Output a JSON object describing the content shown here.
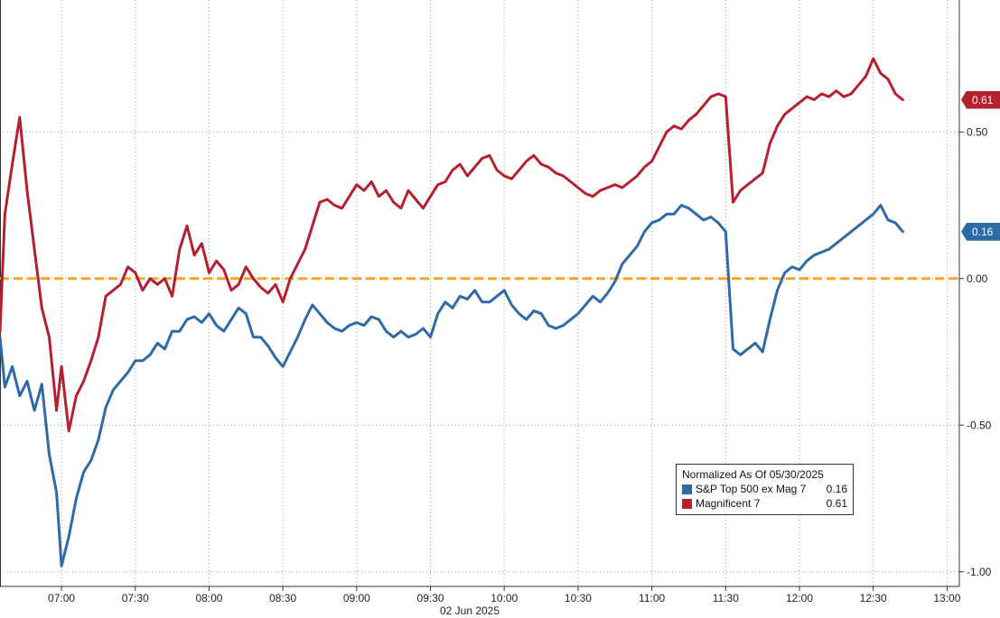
{
  "chart_data": {
    "type": "line",
    "date_label": "02 Jun 2025",
    "x_ticks": [
      "07:00",
      "07:30",
      "08:00",
      "08:30",
      "09:00",
      "09:30",
      "10:00",
      "10:30",
      "11:00",
      "11:30",
      "12:00",
      "12:30",
      "13:00"
    ],
    "y_ticks": [
      "0.50",
      "0.00",
      "-0.50",
      "-1.00"
    ],
    "y_tick_values": [
      0.5,
      0.0,
      -0.5,
      -1.0
    ],
    "ylim": [
      -1.05,
      0.95
    ],
    "xlim": [
      "06:35",
      "13:05"
    ],
    "grid": true,
    "y_axis_side": "right",
    "legend": {
      "title": "Normalized As Of 05/30/2025",
      "placement": "bottom-right",
      "entries": [
        {
          "name": "S&P Top 500 ex Mag 7",
          "value": "0.16",
          "color": "#2f6aa8"
        },
        {
          "name": "Magnificent 7",
          "value": "0.61",
          "color": "#b5202e"
        }
      ]
    },
    "zero_line_color": "#f5a623",
    "series": [
      {
        "name": "S&P Top 500 ex Mag 7",
        "color": "#2f6aa8",
        "last_value": "0.16",
        "points": [
          [
            "06:35",
            -0.2
          ],
          [
            "06:37",
            -0.37
          ],
          [
            "06:40",
            -0.3
          ],
          [
            "06:43",
            -0.4
          ],
          [
            "06:46",
            -0.35
          ],
          [
            "06:49",
            -0.45
          ],
          [
            "06:52",
            -0.36
          ],
          [
            "06:55",
            -0.6
          ],
          [
            "06:58",
            -0.73
          ],
          [
            "07:00",
            -0.98
          ],
          [
            "07:03",
            -0.88
          ],
          [
            "07:06",
            -0.75
          ],
          [
            "07:09",
            -0.66
          ],
          [
            "07:12",
            -0.62
          ],
          [
            "07:15",
            -0.55
          ],
          [
            "07:18",
            -0.44
          ],
          [
            "07:21",
            -0.38
          ],
          [
            "07:24",
            -0.35
          ],
          [
            "07:27",
            -0.32
          ],
          [
            "07:30",
            -0.28
          ],
          [
            "07:33",
            -0.28
          ],
          [
            "07:36",
            -0.26
          ],
          [
            "07:39",
            -0.22
          ],
          [
            "07:42",
            -0.24
          ],
          [
            "07:45",
            -0.18
          ],
          [
            "07:48",
            -0.18
          ],
          [
            "07:51",
            -0.14
          ],
          [
            "07:54",
            -0.13
          ],
          [
            "07:57",
            -0.15
          ],
          [
            "08:00",
            -0.12
          ],
          [
            "08:03",
            -0.16
          ],
          [
            "08:06",
            -0.18
          ],
          [
            "08:09",
            -0.14
          ],
          [
            "08:12",
            -0.1
          ],
          [
            "08:15",
            -0.12
          ],
          [
            "08:18",
            -0.2
          ],
          [
            "08:21",
            -0.2
          ],
          [
            "08:24",
            -0.23
          ],
          [
            "08:27",
            -0.27
          ],
          [
            "08:30",
            -0.3
          ],
          [
            "08:33",
            -0.25
          ],
          [
            "08:36",
            -0.2
          ],
          [
            "08:39",
            -0.14
          ],
          [
            "08:42",
            -0.09
          ],
          [
            "08:45",
            -0.12
          ],
          [
            "08:48",
            -0.15
          ],
          [
            "08:51",
            -0.17
          ],
          [
            "08:54",
            -0.18
          ],
          [
            "08:57",
            -0.16
          ],
          [
            "09:00",
            -0.15
          ],
          [
            "09:03",
            -0.16
          ],
          [
            "09:06",
            -0.13
          ],
          [
            "09:09",
            -0.14
          ],
          [
            "09:12",
            -0.18
          ],
          [
            "09:15",
            -0.2
          ],
          [
            "09:18",
            -0.18
          ],
          [
            "09:21",
            -0.2
          ],
          [
            "09:24",
            -0.19
          ],
          [
            "09:27",
            -0.17
          ],
          [
            "09:30",
            -0.2
          ],
          [
            "09:33",
            -0.12
          ],
          [
            "09:36",
            -0.08
          ],
          [
            "09:39",
            -0.1
          ],
          [
            "09:42",
            -0.06
          ],
          [
            "09:45",
            -0.07
          ],
          [
            "09:48",
            -0.04
          ],
          [
            "09:51",
            -0.08
          ],
          [
            "09:54",
            -0.08
          ],
          [
            "09:57",
            -0.06
          ],
          [
            "10:00",
            -0.04
          ],
          [
            "10:03",
            -0.09
          ],
          [
            "10:06",
            -0.12
          ],
          [
            "10:09",
            -0.14
          ],
          [
            "10:12",
            -0.11
          ],
          [
            "10:15",
            -0.12
          ],
          [
            "10:18",
            -0.16
          ],
          [
            "10:21",
            -0.17
          ],
          [
            "10:24",
            -0.16
          ],
          [
            "10:27",
            -0.14
          ],
          [
            "10:30",
            -0.12
          ],
          [
            "10:33",
            -0.09
          ],
          [
            "10:36",
            -0.06
          ],
          [
            "10:39",
            -0.08
          ],
          [
            "10:42",
            -0.05
          ],
          [
            "10:45",
            -0.01
          ],
          [
            "10:48",
            0.05
          ],
          [
            "10:51",
            0.08
          ],
          [
            "10:54",
            0.11
          ],
          [
            "10:57",
            0.16
          ],
          [
            "11:00",
            0.19
          ],
          [
            "11:03",
            0.2
          ],
          [
            "11:06",
            0.22
          ],
          [
            "11:09",
            0.22
          ],
          [
            "11:12",
            0.25
          ],
          [
            "11:15",
            0.24
          ],
          [
            "11:18",
            0.22
          ],
          [
            "11:21",
            0.2
          ],
          [
            "11:24",
            0.21
          ],
          [
            "11:27",
            0.19
          ],
          [
            "11:30",
            0.16
          ],
          [
            "11:33",
            -0.24
          ],
          [
            "11:36",
            -0.26
          ],
          [
            "11:39",
            -0.24
          ],
          [
            "11:42",
            -0.22
          ],
          [
            "11:45",
            -0.25
          ],
          [
            "11:48",
            -0.14
          ],
          [
            "11:51",
            -0.04
          ],
          [
            "11:54",
            0.02
          ],
          [
            "11:57",
            0.04
          ],
          [
            "12:00",
            0.03
          ],
          [
            "12:03",
            0.06
          ],
          [
            "12:06",
            0.08
          ],
          [
            "12:09",
            0.09
          ],
          [
            "12:12",
            0.1
          ],
          [
            "12:15",
            0.12
          ],
          [
            "12:18",
            0.14
          ],
          [
            "12:21",
            0.16
          ],
          [
            "12:24",
            0.18
          ],
          [
            "12:27",
            0.2
          ],
          [
            "12:30",
            0.22
          ],
          [
            "12:33",
            0.25
          ],
          [
            "12:36",
            0.2
          ],
          [
            "12:39",
            0.19
          ],
          [
            "12:42",
            0.16
          ]
        ]
      },
      {
        "name": "Magnificent 7",
        "color": "#b5202e",
        "last_value": "0.61",
        "points": [
          [
            "06:35",
            -0.18
          ],
          [
            "06:37",
            0.22
          ],
          [
            "06:40",
            0.39
          ],
          [
            "06:43",
            0.55
          ],
          [
            "06:46",
            0.3
          ],
          [
            "06:49",
            0.1
          ],
          [
            "06:52",
            -0.1
          ],
          [
            "06:55",
            -0.2
          ],
          [
            "06:58",
            -0.45
          ],
          [
            "07:00",
            -0.3
          ],
          [
            "07:03",
            -0.52
          ],
          [
            "07:06",
            -0.4
          ],
          [
            "07:09",
            -0.35
          ],
          [
            "07:12",
            -0.28
          ],
          [
            "07:15",
            -0.2
          ],
          [
            "07:18",
            -0.06
          ],
          [
            "07:21",
            -0.04
          ],
          [
            "07:24",
            -0.02
          ],
          [
            "07:27",
            0.04
          ],
          [
            "07:30",
            0.02
          ],
          [
            "07:33",
            -0.04
          ],
          [
            "07:36",
            0.0
          ],
          [
            "07:39",
            -0.02
          ],
          [
            "07:42",
            0.0
          ],
          [
            "07:45",
            -0.06
          ],
          [
            "07:48",
            0.1
          ],
          [
            "07:51",
            0.18
          ],
          [
            "07:54",
            0.08
          ],
          [
            "07:57",
            0.12
          ],
          [
            "08:00",
            0.02
          ],
          [
            "08:03",
            0.06
          ],
          [
            "08:06",
            0.03
          ],
          [
            "08:09",
            -0.04
          ],
          [
            "08:12",
            -0.02
          ],
          [
            "08:15",
            0.04
          ],
          [
            "08:18",
            0.0
          ],
          [
            "08:21",
            -0.03
          ],
          [
            "08:24",
            -0.05
          ],
          [
            "08:27",
            -0.02
          ],
          [
            "08:30",
            -0.08
          ],
          [
            "08:33",
            0.0
          ],
          [
            "08:36",
            0.05
          ],
          [
            "08:39",
            0.1
          ],
          [
            "08:42",
            0.18
          ],
          [
            "08:45",
            0.26
          ],
          [
            "08:48",
            0.27
          ],
          [
            "08:51",
            0.25
          ],
          [
            "08:54",
            0.24
          ],
          [
            "08:57",
            0.28
          ],
          [
            "09:00",
            0.32
          ],
          [
            "09:03",
            0.3
          ],
          [
            "09:06",
            0.33
          ],
          [
            "09:09",
            0.28
          ],
          [
            "09:12",
            0.3
          ],
          [
            "09:15",
            0.26
          ],
          [
            "09:18",
            0.24
          ],
          [
            "09:21",
            0.3
          ],
          [
            "09:24",
            0.27
          ],
          [
            "09:27",
            0.24
          ],
          [
            "09:30",
            0.28
          ],
          [
            "09:33",
            0.32
          ],
          [
            "09:36",
            0.33
          ],
          [
            "09:39",
            0.37
          ],
          [
            "09:42",
            0.39
          ],
          [
            "09:45",
            0.35
          ],
          [
            "09:48",
            0.38
          ],
          [
            "09:51",
            0.41
          ],
          [
            "09:54",
            0.42
          ],
          [
            "09:57",
            0.37
          ],
          [
            "10:00",
            0.35
          ],
          [
            "10:03",
            0.34
          ],
          [
            "10:06",
            0.37
          ],
          [
            "10:09",
            0.4
          ],
          [
            "10:12",
            0.42
          ],
          [
            "10:15",
            0.39
          ],
          [
            "10:18",
            0.38
          ],
          [
            "10:21",
            0.36
          ],
          [
            "10:24",
            0.35
          ],
          [
            "10:27",
            0.33
          ],
          [
            "10:30",
            0.31
          ],
          [
            "10:33",
            0.29
          ],
          [
            "10:36",
            0.28
          ],
          [
            "10:39",
            0.3
          ],
          [
            "10:42",
            0.31
          ],
          [
            "10:45",
            0.32
          ],
          [
            "10:48",
            0.31
          ],
          [
            "10:51",
            0.33
          ],
          [
            "10:54",
            0.35
          ],
          [
            "10:57",
            0.38
          ],
          [
            "11:00",
            0.4
          ],
          [
            "11:03",
            0.45
          ],
          [
            "11:06",
            0.5
          ],
          [
            "11:09",
            0.52
          ],
          [
            "11:12",
            0.51
          ],
          [
            "11:15",
            0.54
          ],
          [
            "11:18",
            0.56
          ],
          [
            "11:21",
            0.59
          ],
          [
            "11:24",
            0.62
          ],
          [
            "11:27",
            0.63
          ],
          [
            "11:30",
            0.62
          ],
          [
            "11:33",
            0.26
          ],
          [
            "11:36",
            0.3
          ],
          [
            "11:39",
            0.32
          ],
          [
            "11:42",
            0.34
          ],
          [
            "11:45",
            0.36
          ],
          [
            "11:48",
            0.46
          ],
          [
            "11:51",
            0.52
          ],
          [
            "11:54",
            0.56
          ],
          [
            "11:57",
            0.58
          ],
          [
            "12:00",
            0.6
          ],
          [
            "12:03",
            0.62
          ],
          [
            "12:06",
            0.61
          ],
          [
            "12:09",
            0.63
          ],
          [
            "12:12",
            0.62
          ],
          [
            "12:15",
            0.64
          ],
          [
            "12:18",
            0.62
          ],
          [
            "12:21",
            0.63
          ],
          [
            "12:24",
            0.66
          ],
          [
            "12:27",
            0.69
          ],
          [
            "12:30",
            0.75
          ],
          [
            "12:33",
            0.7
          ],
          [
            "12:36",
            0.68
          ],
          [
            "12:39",
            0.63
          ],
          [
            "12:42",
            0.61
          ]
        ]
      }
    ]
  }
}
